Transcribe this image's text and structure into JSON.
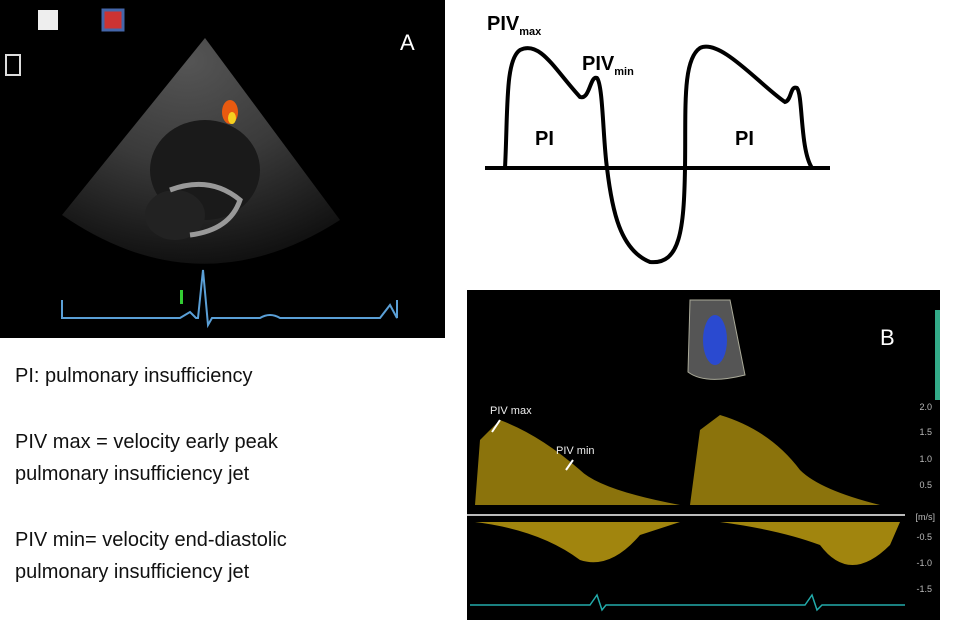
{
  "panel_a": {
    "label": "A"
  },
  "diagram": {
    "piv_max": {
      "base": "PIV",
      "sub": "max"
    },
    "piv_min": {
      "base": "PIV",
      "sub": "min"
    },
    "regions": [
      "PI",
      "PI"
    ]
  },
  "panel_b": {
    "label": "B",
    "annotations": [
      "PIV max",
      "PIV min"
    ],
    "scale": [
      "2.0",
      "1.5",
      "1.0",
      "0.5",
      "-0.5",
      "-1.0",
      "-1.5"
    ],
    "unit": "[m/s]"
  },
  "legend": [
    [
      "PI: pulmonary insufficiency"
    ],
    [
      "PIV max = velocity early peak",
      "pulmonary insufficiency jet"
    ],
    [
      "PIV min= velocity end-diastolic",
      "pulmonary insufficiency jet"
    ]
  ]
}
